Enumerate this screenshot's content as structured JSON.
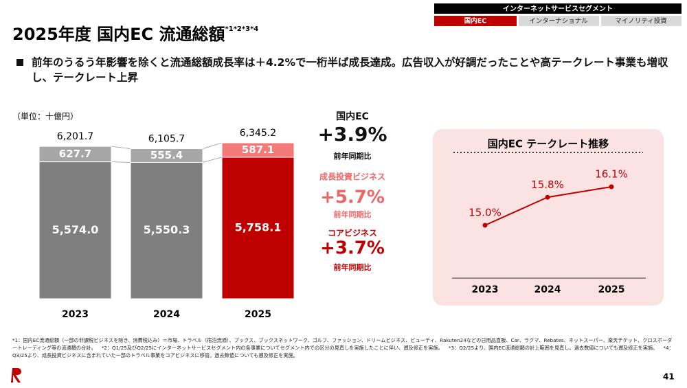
{
  "header": {
    "segment": "インターネットサービスセグメント",
    "tabs": [
      "国内EC",
      "インターナショナル",
      "マイノリティ投資"
    ]
  },
  "title": "2025年度 国内EC 流通総額",
  "title_note": "*1*2*3*4",
  "lead": "前年のうるう年影響を除くと流通総額成長率は＋4.2%で一桁半ば成長達成。広告収入が好調だったことや高テークレート事業も増収し、テークレート上昇",
  "stats": [
    {
      "label": "国内EC",
      "value": "+3.9%",
      "sub": "前年同期比",
      "color": "#111111"
    },
    {
      "label": "成長投資ビジネス",
      "value": "+5.7%",
      "sub": "前年同期比",
      "color": "#f06666"
    },
    {
      "label": "コアビジネス",
      "value": "+3.7%",
      "sub": "前年同期比",
      "color": "#bf0000"
    }
  ],
  "chart_data": [
    {
      "type": "stacked-bar",
      "unit": "（単位：十億円）",
      "categories": [
        "2023",
        "2024",
        "2025"
      ],
      "series": [
        {
          "colors": [
            "#7f7f7f",
            "#7f7f7f",
            "#bf0000"
          ],
          "values": [
            5574.0,
            5550.3,
            5758.1
          ],
          "value_labels": [
            "5,574.0",
            "5,550.3",
            "5,758.1"
          ]
        },
        {
          "colors": [
            "#a6a6a6",
            "#a6a6a6",
            "#f47a7a"
          ],
          "values": [
            627.7,
            555.4,
            587.1
          ]
        }
      ],
      "totals": [
        6201.7,
        6105.7,
        6345.2
      ],
      "total_labels": [
        "6,201.7",
        "6,105.7",
        "6,345.2"
      ]
    },
    {
      "type": "line",
      "title": "国内EC テークレート推移",
      "categories": [
        "2023",
        "2024",
        "2025"
      ],
      "color": "#bf0000",
      "values": [
        15.0,
        15.8,
        16.1
      ],
      "value_labels": [
        "15.0%",
        "15.8%",
        "16.1%"
      ]
    }
  ],
  "footnotes": [
    "*1：国内EC流通総額（一部の非課税ビジネスを除き、消費税込み）＝市場、トラベル（宿泊流通）、ブックス、ブックスネットワーク、ゴルフ、ファッション、ドリームビジネス、ビューティ、Rakuten24などの日用品直販、Car、ラクマ、Rebates、ネットスーパー、楽天チケット、クロスボーダートレーディング等の流通額の合計。",
    "*2：Q1/25及びQ2/25にインターネットサービスセグメント内の各事業についてセグメント内での区分の見直しを実施したことに伴い、遡及修正を実施。",
    "*3：Q2/25より、国内EC流通総額の計上範囲を見直し。過去数値についても遡及修正を実施。",
    "*4：Q3/25より、成長投資ビジネスに含まれていた一部のトラベル事業をコアビジネスに移管。過去数値についても遡及修正を実施。"
  ],
  "page_number": "41"
}
